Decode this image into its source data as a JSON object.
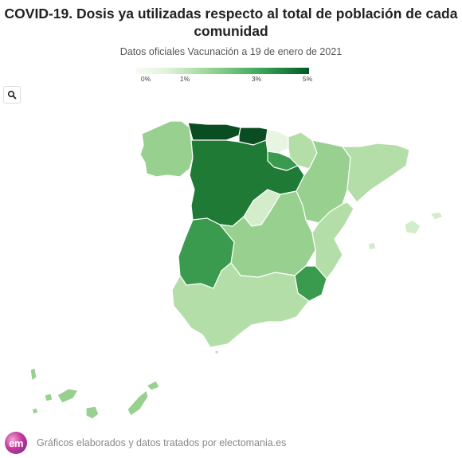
{
  "title": "COVID-19. Dosis ya utilizadas respecto al total de población de cada comunidad",
  "subtitle": "Datos oficiales Vacunación a 19 de enero de 2021",
  "legend": {
    "ticks": [
      "0%",
      "1%",
      "3%",
      "5%"
    ],
    "tick_values": [
      0,
      1,
      3,
      5
    ],
    "max": 5,
    "colors": [
      "#f7fcf5",
      "#e0f3db",
      "#a1d99b",
      "#41ab5d",
      "#005a24"
    ]
  },
  "search_icon": "magnifier-icon",
  "footer": {
    "logo_text": "em",
    "credit": "Gráficos elaborados y datos tratados por electomania.es"
  },
  "palette": {
    "darkest": "#0b4d22",
    "dark": "#1e7a35",
    "mid_dark": "#3a9a4e",
    "mid": "#72c07a",
    "light": "#98d08f",
    "lighter": "#b3dea8",
    "lightest": "#d3ecc9",
    "pale": "#e8f5e2"
  }
}
